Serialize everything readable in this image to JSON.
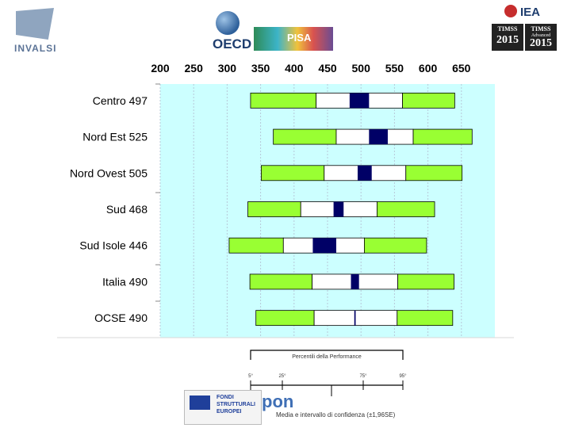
{
  "logos": {
    "invalsi": "INVALSI",
    "oecd": "OECD",
    "pisa": "PISA",
    "iea": "IEA",
    "timss_1_label": "TIMSS",
    "timss_1_year": "2015",
    "timss_2_label": "TIMSS",
    "timss_2_sub": "Advanced",
    "timss_2_year": "2015",
    "eu_fund_text": "FONDI STRUTTURALI EUROPEI",
    "pon": "pon"
  },
  "legend": {
    "title": "Percentili della Performance",
    "p5": "5°",
    "p25": "25°",
    "p75": "75°",
    "p95": "95°",
    "caption": "Media e intervallo di confidenza (±1,96SE)"
  },
  "chart_data": {
    "type": "box",
    "x_ticks": [
      200,
      250,
      300,
      350,
      400,
      450,
      500,
      550,
      600,
      650
    ],
    "x_range": [
      200,
      700
    ],
    "colors": {
      "outer": "#99ff33",
      "inner": "#ffffff",
      "ci": "#000066",
      "background": "#ccffff"
    },
    "rows": [
      {
        "label": "Centro 497",
        "p5": 335,
        "p25": 433,
        "ci_low": 483,
        "ci_high": 512,
        "p75": 562,
        "p95": 640
      },
      {
        "label": "Nord Est 525",
        "p5": 369,
        "p25": 463,
        "ci_low": 512,
        "ci_high": 540,
        "p75": 578,
        "p95": 666
      },
      {
        "label": "Nord Ovest 505",
        "p5": 351,
        "p25": 445,
        "ci_low": 495,
        "ci_high": 516,
        "p75": 567,
        "p95": 651
      },
      {
        "label": "Sud 468",
        "p5": 331,
        "p25": 410,
        "ci_low": 459,
        "ci_high": 474,
        "p75": 524,
        "p95": 610
      },
      {
        "label": "Sud Isole 446",
        "p5": 303,
        "p25": 384,
        "ci_low": 428,
        "ci_high": 463,
        "p75": 505,
        "p95": 598
      },
      {
        "label": "Italia 490",
        "p5": 334,
        "p25": 427,
        "ci_low": 485,
        "ci_high": 497,
        "p75": 555,
        "p95": 639
      },
      {
        "label": "OCSE 490",
        "p5": 343,
        "p25": 430,
        "ci_low": 490,
        "ci_high": 492,
        "p75": 554,
        "p95": 637
      }
    ]
  }
}
